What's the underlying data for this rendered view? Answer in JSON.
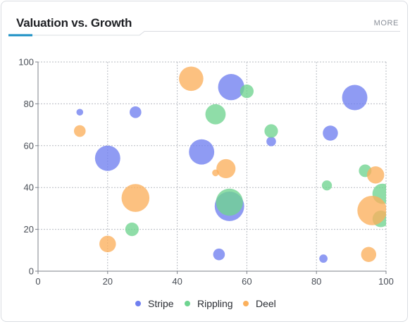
{
  "card": {
    "title": "Valuation vs. Growth",
    "more_label": "MORE"
  },
  "colors": {
    "accent": "#1a8fc4",
    "stripe": "#6f7ff0",
    "rippling": "#6fd490",
    "deel": "#fbb05c"
  },
  "chart_data": {
    "type": "scatter",
    "subtype": "bubble",
    "xlim": [
      0,
      100
    ],
    "ylim": [
      0,
      100
    ],
    "xticks": [
      0,
      20,
      40,
      60,
      80,
      100
    ],
    "yticks": [
      0,
      20,
      40,
      60,
      80,
      100
    ],
    "grid": true,
    "legend_position": "bottom",
    "series": [
      {
        "name": "Stripe",
        "color": "#6f7ff0",
        "points": [
          {
            "x": 12,
            "y": 76,
            "size": 1
          },
          {
            "x": 28,
            "y": 76,
            "size": 3
          },
          {
            "x": 20,
            "y": 54,
            "size": 14
          },
          {
            "x": 47,
            "y": 57,
            "size": 14
          },
          {
            "x": 55.5,
            "y": 88,
            "size": 15
          },
          {
            "x": 55,
            "y": 31,
            "size": 19
          },
          {
            "x": 52,
            "y": 8,
            "size": 3
          },
          {
            "x": 67,
            "y": 62,
            "size": 2
          },
          {
            "x": 84,
            "y": 66,
            "size": 5
          },
          {
            "x": 91,
            "y": 83,
            "size": 14
          },
          {
            "x": 82,
            "y": 6,
            "size": 1.5
          }
        ]
      },
      {
        "name": "Rippling",
        "color": "#6fd490",
        "points": [
          {
            "x": 51,
            "y": 75,
            "size": 9
          },
          {
            "x": 60,
            "y": 86,
            "size": 4
          },
          {
            "x": 67,
            "y": 67,
            "size": 4
          },
          {
            "x": 55,
            "y": 33,
            "size": 16
          },
          {
            "x": 27,
            "y": 20,
            "size": 4
          },
          {
            "x": 83,
            "y": 41,
            "size": 2.2
          },
          {
            "x": 94,
            "y": 48,
            "size": 3.5
          },
          {
            "x": 99,
            "y": 37,
            "size": 9
          },
          {
            "x": 98.5,
            "y": 25,
            "size": 6
          }
        ]
      },
      {
        "name": "Deel",
        "color": "#fbb05c",
        "points": [
          {
            "x": 44,
            "y": 92,
            "size": 13
          },
          {
            "x": 12,
            "y": 67,
            "size": 3
          },
          {
            "x": 28,
            "y": 35,
            "size": 17
          },
          {
            "x": 20,
            "y": 13,
            "size": 6
          },
          {
            "x": 54,
            "y": 49,
            "size": 8
          },
          {
            "x": 51,
            "y": 47,
            "size": 1
          },
          {
            "x": 97,
            "y": 46,
            "size": 6.5
          },
          {
            "x": 96,
            "y": 29,
            "size": 19
          },
          {
            "x": 95,
            "y": 8,
            "size": 5
          }
        ]
      }
    ]
  }
}
